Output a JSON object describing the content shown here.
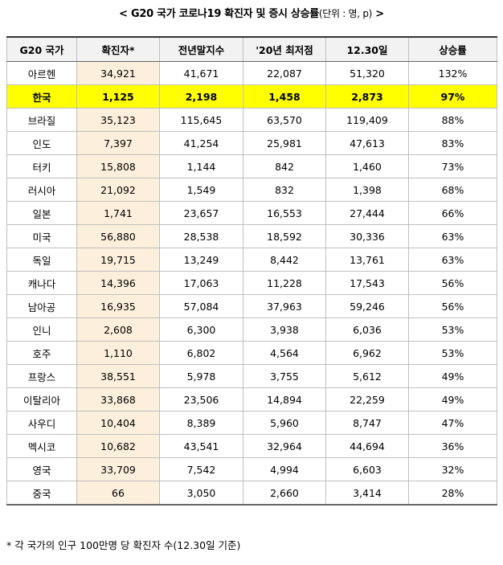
{
  "title": {
    "text": "< G20 국가 코로나19 확진자 및 증시 상승률",
    "unit": "(단위 : 명, p)",
    "end": " >"
  },
  "table": {
    "header": [
      "G20 국가",
      "확진자*",
      "전년말지수",
      "'20년 최저점",
      "12.30일",
      "상승률"
    ],
    "rows": [
      [
        "아르헨",
        "34,921",
        "41,671",
        "22,087",
        "51,320",
        "132%"
      ],
      [
        "한국",
        "1,125",
        "2,198",
        "1,458",
        "2,873",
        "97%"
      ],
      [
        "브라질",
        "35,123",
        "115,645",
        "63,570",
        "119,409",
        "88%"
      ],
      [
        "인도",
        "7,397",
        "41,254",
        "25,981",
        "47,613",
        "83%"
      ],
      [
        "터키",
        "15,808",
        "1,144",
        "842",
        "1,460",
        "73%"
      ],
      [
        "러시아",
        "21,092",
        "1,549",
        "832",
        "1,398",
        "68%"
      ],
      [
        "일본",
        "1,741",
        "23,657",
        "16,553",
        "27,444",
        "66%"
      ],
      [
        "미국",
        "56,880",
        "28,538",
        "18,592",
        "30,336",
        "63%"
      ],
      [
        "독일",
        "19,715",
        "13,249",
        "8,442",
        "13,761",
        "63%"
      ],
      [
        "캐나다",
        "14,396",
        "17,063",
        "11,228",
        "17,543",
        "56%"
      ],
      [
        "남아공",
        "16,935",
        "57,084",
        "37,963",
        "59,246",
        "56%"
      ],
      [
        "인니",
        "2,608",
        "6,300",
        "3,938",
        "6,036",
        "53%"
      ],
      [
        "호주",
        "1,110",
        "6,802",
        "4,564",
        "6,962",
        "53%"
      ],
      [
        "프랑스",
        "38,551",
        "5,978",
        "3,755",
        "5,612",
        "49%"
      ],
      [
        "이탈리아",
        "33,868",
        "23,506",
        "14,894",
        "22,259",
        "49%"
      ],
      [
        "사우디",
        "10,404",
        "8,389",
        "5,960",
        "8,747",
        "47%"
      ],
      [
        "멕시코",
        "10,682",
        "43,541",
        "32,964",
        "44,694",
        "36%"
      ],
      [
        "영국",
        "33,709",
        "7,542",
        "4,994",
        "6,603",
        "32%"
      ],
      [
        "중국",
        "66",
        "3,050",
        "2,660",
        "3,414",
        "28%"
      ]
    ]
  },
  "footnote": "* 각 국가의 인구 100만명 당 확진자 수(12.30일 기준)"
}
